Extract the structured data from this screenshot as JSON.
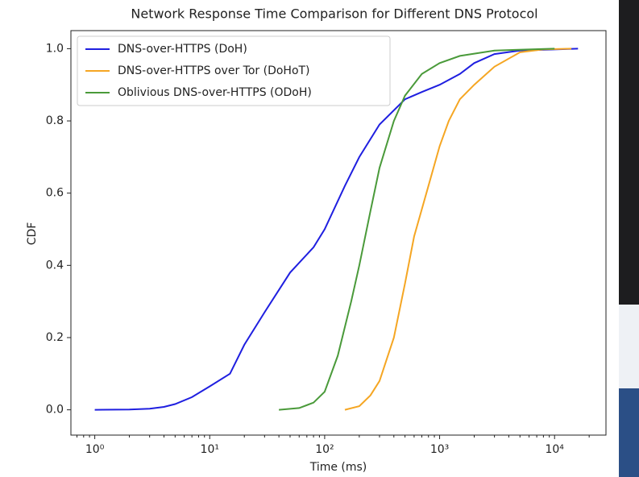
{
  "chart_data": {
    "type": "line",
    "title": "Network Response Time Comparison for Different DNS Protocol",
    "xlabel": "Time (ms)",
    "ylabel": "CDF",
    "xscale": "log",
    "legend": "upper left",
    "xlim": [
      0.62,
      28000
    ],
    "ylim": [
      -0.07,
      1.05
    ],
    "xticks": [
      {
        "value": 1,
        "label": "10⁰"
      },
      {
        "value": 10,
        "label": "10¹"
      },
      {
        "value": 100,
        "label": "10²"
      },
      {
        "value": 1000,
        "label": "10³"
      },
      {
        "value": 10000,
        "label": "10⁴"
      }
    ],
    "yticks": [
      {
        "value": 0,
        "label": "0.0"
      },
      {
        "value": 0.2,
        "label": "0.2"
      },
      {
        "value": 0.4,
        "label": "0.4"
      },
      {
        "value": 0.6,
        "label": "0.6"
      },
      {
        "value": 0.8,
        "label": "0.8"
      },
      {
        "value": 1,
        "label": "1.0"
      }
    ],
    "series": [
      {
        "name": "DNS-over-HTTPS (DoH)",
        "color": "#1f1fe0",
        "x": [
          1,
          2,
          3,
          4,
          5,
          7,
          10,
          15,
          20,
          30,
          50,
          80,
          100,
          150,
          200,
          300,
          500,
          700,
          1000,
          1500,
          2000,
          3000,
          5000,
          16000
        ],
        "values": [
          0,
          0.001,
          0.003,
          0.008,
          0.016,
          0.035,
          0.065,
          0.1,
          0.18,
          0.27,
          0.38,
          0.45,
          0.5,
          0.62,
          0.7,
          0.79,
          0.86,
          0.88,
          0.9,
          0.93,
          0.96,
          0.985,
          0.995,
          1
        ]
      },
      {
        "name": "DNS-over-HTTPS over Tor (DoHoT)",
        "color": "#f5a623",
        "x": [
          150,
          200,
          250,
          300,
          400,
          500,
          600,
          800,
          1000,
          1200,
          1500,
          2000,
          3000,
          5000,
          8000,
          14000
        ],
        "values": [
          0,
          0.01,
          0.04,
          0.08,
          0.2,
          0.35,
          0.48,
          0.62,
          0.73,
          0.8,
          0.86,
          0.9,
          0.95,
          0.99,
          0.998,
          1
        ]
      },
      {
        "name": "Oblivious DNS-over-HTTPS (ODoH)",
        "color": "#4a9a3a",
        "x": [
          40,
          60,
          80,
          100,
          130,
          170,
          200,
          250,
          300,
          400,
          500,
          700,
          1000,
          1500,
          3000,
          10000
        ],
        "values": [
          0,
          0.005,
          0.02,
          0.05,
          0.15,
          0.3,
          0.4,
          0.55,
          0.67,
          0.8,
          0.87,
          0.93,
          0.96,
          0.98,
          0.995,
          1
        ]
      }
    ]
  }
}
